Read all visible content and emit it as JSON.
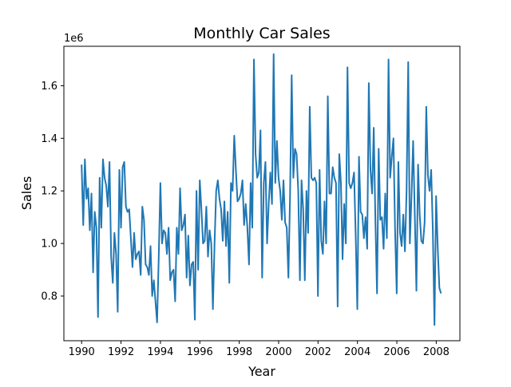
{
  "chart_data": {
    "type": "line",
    "title": "Monthly Car Sales",
    "xlabel": "Year",
    "ylabel": "Sales",
    "y_offset_text": "1e6",
    "xlim": [
      1989.1,
      2009.2
    ],
    "ylim": [
      630000,
      1750000
    ],
    "x_ticks": [
      1990,
      1992,
      1994,
      1996,
      1998,
      2000,
      2002,
      2004,
      2006,
      2008
    ],
    "x_tick_labels": [
      "1990",
      "1992",
      "1994",
      "1996",
      "1998",
      "2000",
      "2002",
      "2004",
      "2006",
      "2008"
    ],
    "y_ticks": [
      800000,
      1000000,
      1200000,
      1400000,
      1600000
    ],
    "y_tick_labels": [
      "0.8",
      "1.0",
      "1.2",
      "1.4",
      "1.6"
    ],
    "grid": false,
    "legend": "none",
    "line_color": "#1f77b4",
    "series": [
      {
        "x_start": 1990.0,
        "x_step": 0.0833,
        "values": [
          1300000,
          1070000,
          1320000,
          1170000,
          1210000,
          1050000,
          1190000,
          890000,
          1120000,
          1060000,
          720000,
          1250000,
          1060000,
          1320000,
          1250000,
          1220000,
          1140000,
          1310000,
          950000,
          850000,
          1040000,
          960000,
          740000,
          1280000,
          1060000,
          1290000,
          1310000,
          1140000,
          1120000,
          1130000,
          1020000,
          910000,
          1040000,
          940000,
          960000,
          970000,
          880000,
          1140000,
          1090000,
          920000,
          910000,
          880000,
          990000,
          800000,
          860000,
          780000,
          700000,
          950000,
          1230000,
          1000000,
          1050000,
          1040000,
          960000,
          1060000,
          860000,
          890000,
          900000,
          780000,
          1060000,
          960000,
          1210000,
          1050000,
          1070000,
          1110000,
          870000,
          1030000,
          840000,
          920000,
          930000,
          710000,
          1200000,
          900000,
          1240000,
          1130000,
          1000000,
          1010000,
          1140000,
          950000,
          1050000,
          1000000,
          750000,
          1000000,
          1200000,
          1240000,
          1170000,
          1130000,
          1010000,
          1160000,
          990000,
          1120000,
          850000,
          1230000,
          1200000,
          1410000,
          1280000,
          1160000,
          1170000,
          1190000,
          1240000,
          1070000,
          1150000,
          1060000,
          920000,
          1230000,
          1060000,
          1700000,
          1340000,
          1250000,
          1270000,
          1430000,
          870000,
          1230000,
          1310000,
          1000000,
          1150000,
          1270000,
          1150000,
          1720000,
          1230000,
          1390000,
          1250000,
          1200000,
          1090000,
          1240000,
          1080000,
          1060000,
          870000,
          1180000,
          1640000,
          1250000,
          1360000,
          1340000,
          1200000,
          860000,
          1240000,
          1130000,
          860000,
          1200000,
          1040000,
          1520000,
          1250000,
          1240000,
          1250000,
          1230000,
          800000,
          1280000,
          1010000,
          960000,
          1160000,
          1000000,
          1560000,
          1190000,
          1190000,
          1290000,
          1250000,
          1230000,
          760000,
          1340000,
          1230000,
          940000,
          1150000,
          1000000,
          1670000,
          1230000,
          1210000,
          1230000,
          1270000,
          1030000,
          750000,
          1330000,
          1120000,
          1110000,
          1020000,
          1100000,
          980000,
          1610000,
          1280000,
          1190000,
          1440000,
          1090000,
          810000,
          1360000,
          1090000,
          1100000,
          980000,
          1190000,
          1020000,
          1700000,
          1250000,
          1330000,
          1400000,
          1050000,
          810000,
          1310000,
          1040000,
          990000,
          1110000,
          970000,
          1200000,
          1690000,
          1000000,
          1180000,
          1390000,
          1110000,
          820000,
          1300000,
          1110000,
          1010000,
          1000000,
          1080000,
          1520000,
          1260000,
          1200000,
          1280000,
          1050000,
          690000,
          1180000,
          980000,
          830000,
          810000
        ]
      }
    ]
  }
}
